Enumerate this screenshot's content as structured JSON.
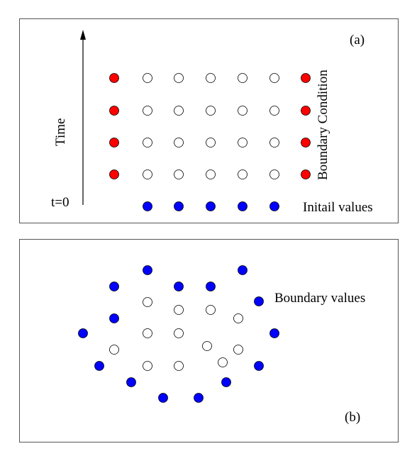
{
  "panel_a": {
    "tag": "(a)",
    "time_label": "Time",
    "t0_label": "t=0",
    "boundary_condition_label": "Boundary Condition",
    "initial_values_label": "Initail values",
    "boundary_color": "#ff0000",
    "initial_color": "#0000ff",
    "interior_color": "#ffffff",
    "time_arrow_icon": "arrow-up-icon"
  },
  "panel_b": {
    "tag": "(b)",
    "boundary_values_label": "Boundary values",
    "boundary_color": "#0000ff",
    "interior_color": "#ffffff"
  }
}
